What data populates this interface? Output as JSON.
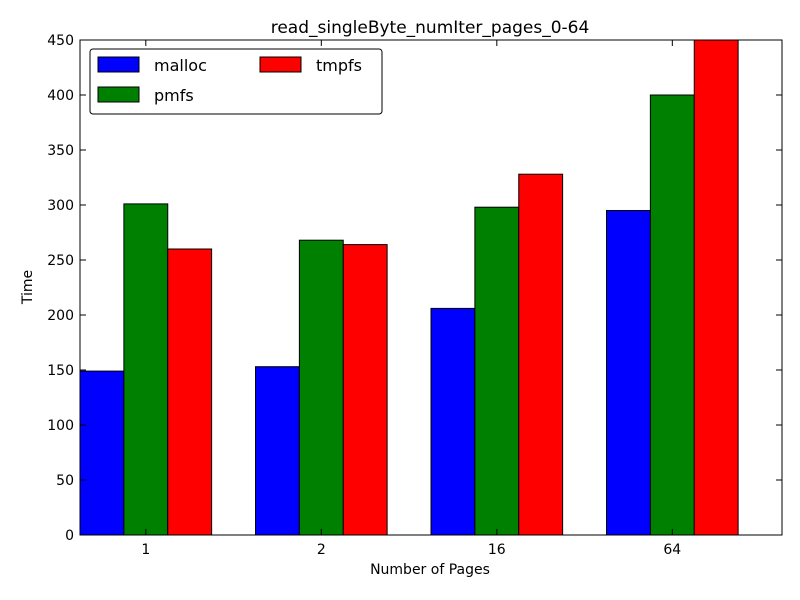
{
  "chart_data": {
    "type": "bar",
    "title": "read_singleByte_numIter_pages_0-64",
    "xlabel": "Number of Pages",
    "ylabel": "Time",
    "categories": [
      "1",
      "2",
      "16",
      "64"
    ],
    "ylim": [
      0,
      450
    ],
    "yticks": [
      0,
      50,
      100,
      150,
      200,
      250,
      300,
      350,
      400,
      450
    ],
    "grid": false,
    "legend_position": "top-left",
    "series": [
      {
        "name": "malloc",
        "color": "#0000ff",
        "values": [
          149,
          153,
          206,
          295
        ]
      },
      {
        "name": "pmfs",
        "color": "#008000",
        "values": [
          301,
          268,
          298,
          400
        ]
      },
      {
        "name": "tmpfs",
        "color": "#ff0000",
        "values": [
          260,
          264,
          328,
          450
        ]
      }
    ]
  }
}
